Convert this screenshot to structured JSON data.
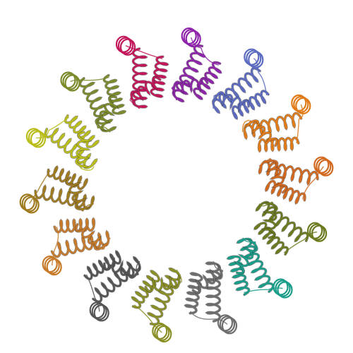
{
  "image": {
    "subject": "protein-ring-ribbon-model",
    "background": "#ffffff",
    "subunit_count": 14,
    "subunit_colors": [
      "#c2185b",
      "#8e24aa",
      "#5c6bc0",
      "#e07b18",
      "#d2691e",
      "#6b7a1e",
      "#1a9e8a",
      "#6d6d6d",
      "#8a8f25",
      "#555555",
      "#c77b2a",
      "#a07a1f",
      "#b9bd1a",
      "#7b8a2a"
    ],
    "accent_colors": [
      "#d63384",
      "#7e57c2",
      "#e67e22",
      "#808000",
      "#20a39e",
      "#777777"
    ]
  }
}
